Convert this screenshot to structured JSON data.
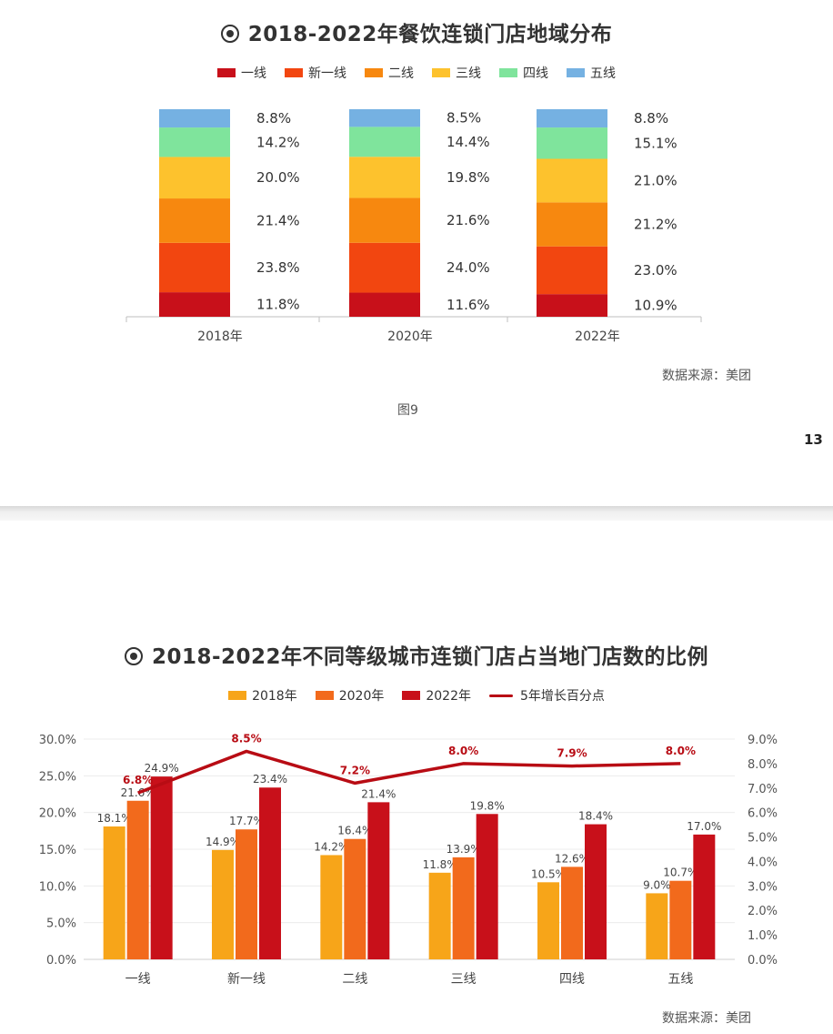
{
  "page_top": {
    "title": "2018-2022年餐饮连锁门店地域分布",
    "source": "数据来源：美团",
    "caption": "图9",
    "page_number": "13"
  },
  "page_bottom": {
    "title": "2018-2022年不同等级城市连锁门店占当地门店数的比例",
    "source": "数据来源：美团"
  },
  "chart_data": [
    {
      "type": "bar",
      "stacked": true,
      "percent_stacked": true,
      "categories": [
        "2018年",
        "2020年",
        "2022年"
      ],
      "series": [
        {
          "name": "一线",
          "color": "#c8101a",
          "values": [
            11.8,
            11.6,
            10.9
          ],
          "labels": [
            "11.8%",
            "11.6%",
            "10.9%"
          ]
        },
        {
          "name": "新一线",
          "color": "#f24610",
          "values": [
            23.8,
            24.0,
            23.0
          ],
          "labels": [
            "23.8%",
            "24.0%",
            "23.0%"
          ]
        },
        {
          "name": "二线",
          "color": "#f7880f",
          "values": [
            21.4,
            21.6,
            21.2
          ],
          "labels": [
            "21.4%",
            "21.6%",
            "21.2%"
          ]
        },
        {
          "name": "三线",
          "color": "#fdc22d",
          "values": [
            20.0,
            19.8,
            21.0
          ],
          "labels": [
            "20.0%",
            "19.8%",
            "21.0%"
          ]
        },
        {
          "name": "四线",
          "color": "#7fe49c",
          "values": [
            14.2,
            14.4,
            15.1
          ],
          "labels": [
            "14.2%",
            "14.4%",
            "15.1%"
          ]
        },
        {
          "name": "五线",
          "color": "#75b1e2",
          "values": [
            8.8,
            8.5,
            8.8
          ],
          "labels": [
            "8.8%",
            "8.5%",
            "8.8%"
          ]
        }
      ],
      "legend_placement": "top",
      "grid": false
    },
    {
      "type": "bar",
      "categories": [
        "一线",
        "新一线",
        "二线",
        "三线",
        "四线",
        "五线"
      ],
      "series": [
        {
          "name": "2018年",
          "color": "#f7a519",
          "values": [
            18.1,
            14.9,
            14.2,
            11.8,
            10.5,
            9.0
          ],
          "labels": [
            "18.1%",
            "14.9%",
            "14.2%",
            "11.8%",
            "10.5%",
            "9.0%"
          ]
        },
        {
          "name": "2020年",
          "color": "#f26a1c",
          "values": [
            21.6,
            17.7,
            16.4,
            13.9,
            12.6,
            10.7
          ],
          "labels": [
            "21.6%",
            "17.7%",
            "16.4%",
            "13.9%",
            "12.6%",
            "10.7%"
          ]
        },
        {
          "name": "2022年",
          "color": "#c8101a",
          "values": [
            24.9,
            23.4,
            21.4,
            19.8,
            18.4,
            17.0
          ],
          "labels": [
            "24.9%",
            "23.4%",
            "21.4%",
            "19.8%",
            "18.4%",
            "17.0%"
          ]
        }
      ],
      "line_series": {
        "name": "5年增长百分点",
        "color": "#b80c14",
        "type": "line",
        "axis": "right",
        "values": [
          6.8,
          8.5,
          7.2,
          8.0,
          7.9,
          8.0
        ],
        "labels": [
          "6.8%",
          "8.5%",
          "7.2%",
          "8.0%",
          "7.9%",
          "8.0%"
        ]
      },
      "ylim": [
        0,
        30
      ],
      "y_ticks": [
        "0.0%",
        "5.0%",
        "10.0%",
        "15.0%",
        "20.0%",
        "25.0%",
        "30.0%"
      ],
      "y2lim": [
        0,
        9
      ],
      "y2_ticks": [
        "0.0%",
        "1.0%",
        "2.0%",
        "3.0%",
        "4.0%",
        "5.0%",
        "6.0%",
        "7.0%",
        "8.0%",
        "9.0%"
      ],
      "legend_placement": "top",
      "grid": true
    }
  ]
}
